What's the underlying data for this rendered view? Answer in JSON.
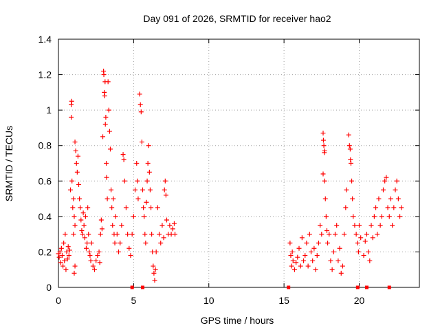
{
  "chart_data": {
    "type": "scatter",
    "title": "Day 091 of 2026, SRMTID for receiver hao2",
    "xlabel": "GPS time / hours",
    "ylabel": "SRMTID / TECUs",
    "xlim": [
      0,
      24
    ],
    "ylim": [
      0,
      1.4
    ],
    "grid": true,
    "x_ticks": [
      0,
      5,
      10,
      15,
      20
    ],
    "x_tick_labels": [
      "0",
      "5",
      "10",
      "15",
      "20"
    ],
    "y_ticks": [
      0,
      0.2,
      0.4,
      0.6,
      0.8,
      1.0,
      1.2,
      1.4
    ],
    "y_tick_labels": [
      "0",
      "0.2",
      "0.4",
      "0.6",
      "0.8",
      "1",
      "1.2",
      "1.4"
    ],
    "marker": "+",
    "series": [
      {
        "name": "SRMTID",
        "color": "#ff0000",
        "points": [
          [
            0.0,
            0.19
          ],
          [
            0.05,
            0.17
          ],
          [
            0.1,
            0.2
          ],
          [
            0.15,
            0.14
          ],
          [
            0.2,
            0.22
          ],
          [
            0.25,
            0.18
          ],
          [
            0.3,
            0.12
          ],
          [
            0.35,
            0.25
          ],
          [
            0.4,
            0.15
          ],
          [
            0.45,
            0.3
          ],
          [
            0.5,
            0.1
          ],
          [
            0.55,
            0.2
          ],
          [
            0.6,
            0.16
          ],
          [
            0.65,
            0.23
          ],
          [
            0.7,
            0.18
          ],
          [
            0.75,
            0.21
          ],
          [
            0.8,
            0.55
          ],
          [
            0.85,
            0.96
          ],
          [
            0.85,
            1.03
          ],
          [
            0.88,
            1.05
          ],
          [
            0.9,
            0.6
          ],
          [
            0.95,
            0.45
          ],
          [
            1.0,
            0.5
          ],
          [
            1.05,
            0.4
          ],
          [
            1.1,
            0.35
          ],
          [
            1.05,
            0.08
          ],
          [
            1.1,
            0.12
          ],
          [
            1.0,
            0.3
          ],
          [
            1.1,
            0.82
          ],
          [
            1.15,
            0.77
          ],
          [
            1.2,
            0.7
          ],
          [
            1.25,
            0.65
          ],
          [
            1.3,
            0.74
          ],
          [
            1.35,
            0.58
          ],
          [
            1.4,
            0.5
          ],
          [
            1.45,
            0.45
          ],
          [
            1.5,
            0.38
          ],
          [
            1.55,
            0.32
          ],
          [
            1.6,
            0.3
          ],
          [
            1.65,
            0.42
          ],
          [
            1.7,
            0.35
          ],
          [
            1.75,
            0.28
          ],
          [
            1.8,
            0.4
          ],
          [
            1.85,
            0.22
          ],
          [
            1.9,
            0.25
          ],
          [
            1.95,
            0.45
          ],
          [
            2.0,
            0.3
          ],
          [
            2.05,
            0.2
          ],
          [
            2.1,
            0.18
          ],
          [
            2.15,
            0.15
          ],
          [
            2.2,
            0.25
          ],
          [
            2.3,
            0.12
          ],
          [
            2.4,
            0.1
          ],
          [
            2.5,
            0.15
          ],
          [
            2.6,
            0.18
          ],
          [
            2.7,
            0.2
          ],
          [
            2.75,
            0.14
          ],
          [
            2.8,
            0.3
          ],
          [
            2.85,
            0.38
          ],
          [
            2.9,
            0.33
          ],
          [
            2.95,
            0.85
          ],
          [
            3.0,
            1.22
          ],
          [
            3.02,
            1.2
          ],
          [
            3.05,
            1.1
          ],
          [
            3.08,
            1.08
          ],
          [
            3.1,
            1.16
          ],
          [
            3.12,
            0.92
          ],
          [
            3.15,
            0.96
          ],
          [
            3.18,
            0.7
          ],
          [
            3.2,
            0.62
          ],
          [
            3.25,
            0.5
          ],
          [
            3.3,
            1.16
          ],
          [
            3.35,
            1.0
          ],
          [
            3.4,
            0.88
          ],
          [
            3.45,
            0.78
          ],
          [
            3.5,
            0.55
          ],
          [
            3.55,
            0.45
          ],
          [
            3.6,
            0.35
          ],
          [
            3.65,
            0.5
          ],
          [
            3.7,
            0.3
          ],
          [
            3.75,
            0.25
          ],
          [
            3.8,
            0.4
          ],
          [
            3.9,
            0.3
          ],
          [
            4.0,
            0.2
          ],
          [
            4.1,
            0.25
          ],
          [
            4.2,
            0.35
          ],
          [
            4.3,
            0.75
          ],
          [
            4.35,
            0.72
          ],
          [
            4.4,
            0.6
          ],
          [
            4.5,
            0.45
          ],
          [
            4.6,
            0.3
          ],
          [
            4.7,
            0.22
          ],
          [
            4.8,
            0.18
          ],
          [
            4.9,
            0.3
          ],
          [
            5.0,
            0.4
          ],
          [
            5.1,
            0.55
          ],
          [
            5.2,
            0.7
          ],
          [
            5.25,
            0.6
          ],
          [
            5.3,
            0.5
          ],
          [
            5.4,
            1.09
          ],
          [
            5.45,
            1.03
          ],
          [
            5.5,
            0.99
          ],
          [
            5.55,
            0.82
          ],
          [
            5.6,
            0.55
          ],
          [
            5.65,
            0.45
          ],
          [
            5.7,
            0.4
          ],
          [
            5.75,
            0.3
          ],
          [
            5.8,
            0.25
          ],
          [
            5.85,
            0.48
          ],
          [
            5.9,
            0.6
          ],
          [
            5.95,
            0.7
          ],
          [
            6.0,
            0.8
          ],
          [
            6.05,
            0.65
          ],
          [
            6.1,
            0.55
          ],
          [
            6.15,
            0.45
          ],
          [
            6.2,
            0.3
          ],
          [
            6.25,
            0.2
          ],
          [
            6.3,
            0.12
          ],
          [
            6.35,
            0.08
          ],
          [
            6.4,
            0.04
          ],
          [
            6.45,
            0.1
          ],
          [
            6.5,
            0.2
          ],
          [
            6.6,
            0.45
          ],
          [
            6.7,
            0.3
          ],
          [
            6.8,
            0.25
          ],
          [
            6.9,
            0.35
          ],
          [
            7.0,
            0.28
          ],
          [
            7.05,
            0.55
          ],
          [
            7.1,
            0.6
          ],
          [
            7.15,
            0.52
          ],
          [
            7.2,
            0.38
          ],
          [
            7.3,
            0.3
          ],
          [
            7.4,
            0.35
          ],
          [
            7.5,
            0.3
          ],
          [
            7.6,
            0.33
          ],
          [
            7.7,
            0.36
          ],
          [
            7.75,
            0.3
          ],
          [
            15.4,
            0.25
          ],
          [
            15.45,
            0.18
          ],
          [
            15.5,
            0.12
          ],
          [
            15.55,
            0.2
          ],
          [
            15.6,
            0.15
          ],
          [
            15.7,
            0.1
          ],
          [
            15.8,
            0.14
          ],
          [
            15.9,
            0.17
          ],
          [
            16.0,
            0.22
          ],
          [
            16.1,
            0.12
          ],
          [
            16.2,
            0.28
          ],
          [
            16.3,
            0.15
          ],
          [
            16.4,
            0.18
          ],
          [
            16.5,
            0.25
          ],
          [
            16.6,
            0.12
          ],
          [
            16.7,
            0.3
          ],
          [
            16.8,
            0.2
          ],
          [
            16.9,
            0.15
          ],
          [
            17.0,
            0.22
          ],
          [
            17.1,
            0.1
          ],
          [
            17.2,
            0.18
          ],
          [
            17.3,
            0.25
          ],
          [
            17.4,
            0.35
          ],
          [
            17.5,
            0.3
          ],
          [
            17.6,
            0.87
          ],
          [
            17.62,
            0.83
          ],
          [
            17.65,
            0.8
          ],
          [
            17.68,
            0.76
          ],
          [
            17.7,
            0.77
          ],
          [
            17.6,
            0.64
          ],
          [
            17.7,
            0.6
          ],
          [
            17.75,
            0.5
          ],
          [
            17.8,
            0.4
          ],
          [
            17.85,
            0.32
          ],
          [
            17.9,
            0.25
          ],
          [
            18.0,
            0.3
          ],
          [
            18.1,
            0.15
          ],
          [
            18.2,
            0.1
          ],
          [
            18.3,
            0.2
          ],
          [
            18.4,
            0.3
          ],
          [
            18.5,
            0.35
          ],
          [
            18.6,
            0.15
          ],
          [
            18.7,
            0.22
          ],
          [
            18.8,
            0.08
          ],
          [
            18.9,
            0.12
          ],
          [
            19.0,
            0.3
          ],
          [
            19.1,
            0.45
          ],
          [
            19.15,
            0.55
          ],
          [
            19.3,
            0.86
          ],
          [
            19.35,
            0.8
          ],
          [
            19.4,
            0.78
          ],
          [
            19.42,
            0.72
          ],
          [
            19.45,
            0.7
          ],
          [
            19.5,
            0.6
          ],
          [
            19.55,
            0.5
          ],
          [
            19.6,
            0.4
          ],
          [
            19.7,
            0.35
          ],
          [
            19.8,
            0.3
          ],
          [
            19.9,
            0.25
          ],
          [
            19.95,
            0.2
          ],
          [
            20.0,
            0.35
          ],
          [
            20.1,
            0.28
          ],
          [
            20.3,
            0.18
          ],
          [
            20.4,
            0.26
          ],
          [
            20.5,
            0.3
          ],
          [
            20.6,
            0.2
          ],
          [
            20.7,
            0.15
          ],
          [
            20.8,
            0.35
          ],
          [
            20.9,
            0.28
          ],
          [
            21.0,
            0.4
          ],
          [
            21.1,
            0.45
          ],
          [
            21.2,
            0.3
          ],
          [
            21.3,
            0.5
          ],
          [
            21.4,
            0.35
          ],
          [
            21.5,
            0.4
          ],
          [
            21.6,
            0.55
          ],
          [
            21.7,
            0.6
          ],
          [
            21.8,
            0.62
          ],
          [
            21.9,
            0.45
          ],
          [
            22.0,
            0.4
          ],
          [
            22.1,
            0.5
          ],
          [
            22.2,
            0.35
          ],
          [
            22.3,
            0.45
          ],
          [
            22.4,
            0.55
          ],
          [
            22.5,
            0.6
          ],
          [
            22.6,
            0.5
          ],
          [
            22.7,
            0.4
          ],
          [
            22.8,
            0.45
          ]
        ]
      }
    ],
    "axis_markers": {
      "color": "#ff0000",
      "x": [
        4.9,
        5.6,
        15.3,
        19.9,
        20.5,
        22.0
      ]
    }
  }
}
